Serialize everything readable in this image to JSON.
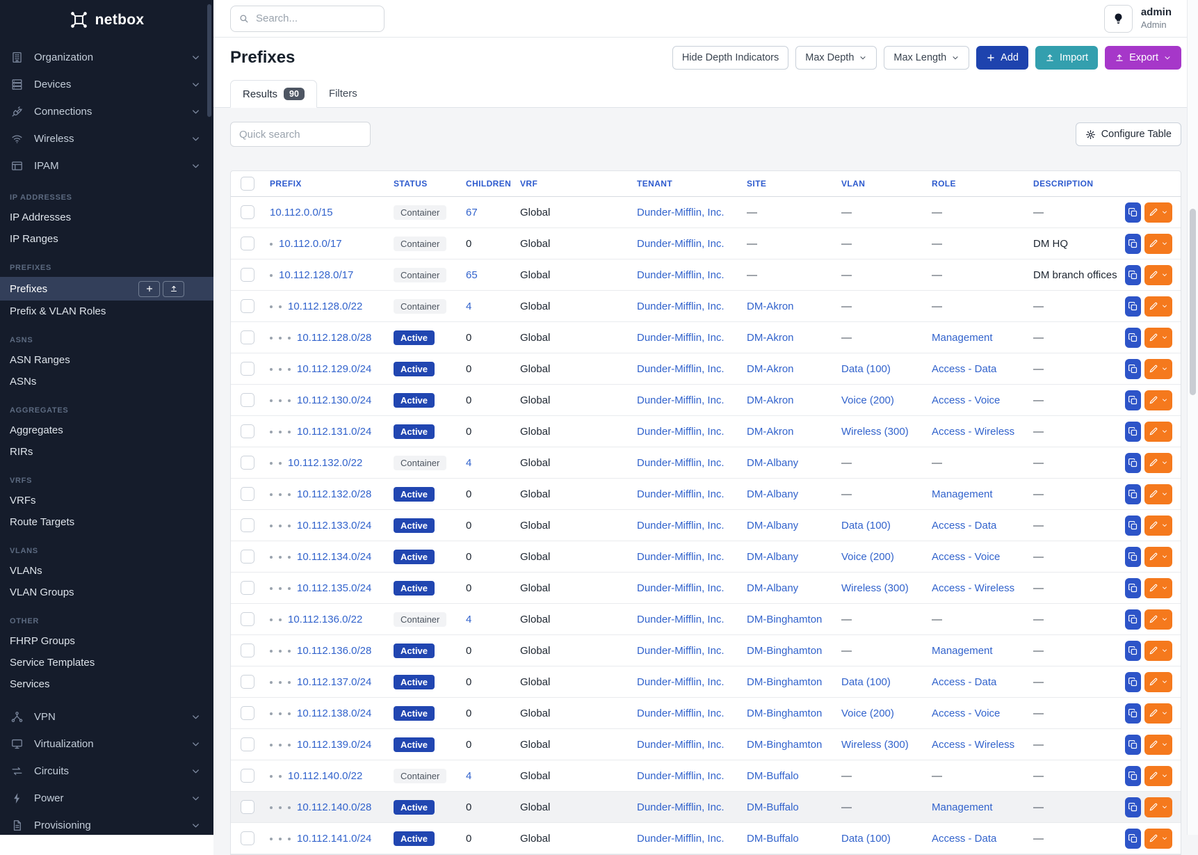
{
  "brand": {
    "name": "netbox",
    "logo_icon": "netbox-logo-icon"
  },
  "topbar": {
    "search_placeholder": "Search...",
    "user": {
      "name": "admin",
      "role": "Admin"
    },
    "theme_toggle_icon": "lightbulb-icon"
  },
  "sidebar": {
    "top_groups": [
      {
        "label": "Organization",
        "icon": "building-icon"
      },
      {
        "label": "Devices",
        "icon": "server-icon"
      },
      {
        "label": "Connections",
        "icon": "plug-icon"
      },
      {
        "label": "Wireless",
        "icon": "wifi-icon"
      },
      {
        "label": "IPAM",
        "icon": "ipam-icon"
      }
    ],
    "sections": [
      {
        "label": "IP ADDRESSES",
        "items": [
          {
            "label": "IP Addresses"
          },
          {
            "label": "IP Ranges"
          }
        ]
      },
      {
        "label": "PREFIXES",
        "items": [
          {
            "label": "Prefixes",
            "active": true,
            "actions": [
              "plus-icon",
              "upload-icon"
            ]
          },
          {
            "label": "Prefix & VLAN Roles"
          }
        ]
      },
      {
        "label": "ASNS",
        "items": [
          {
            "label": "ASN Ranges"
          },
          {
            "label": "ASNs"
          }
        ]
      },
      {
        "label": "AGGREGATES",
        "items": [
          {
            "label": "Aggregates"
          },
          {
            "label": "RIRs"
          }
        ]
      },
      {
        "label": "VRFS",
        "items": [
          {
            "label": "VRFs"
          },
          {
            "label": "Route Targets"
          }
        ]
      },
      {
        "label": "VLANS",
        "items": [
          {
            "label": "VLANs"
          },
          {
            "label": "VLAN Groups"
          }
        ]
      },
      {
        "label": "OTHER",
        "items": [
          {
            "label": "FHRP Groups"
          },
          {
            "label": "Service Templates"
          },
          {
            "label": "Services"
          }
        ]
      }
    ],
    "bottom_groups": [
      {
        "label": "VPN",
        "icon": "share-icon"
      },
      {
        "label": "Virtualization",
        "icon": "monitor-icon"
      },
      {
        "label": "Circuits",
        "icon": "transfer-icon"
      },
      {
        "label": "Power",
        "icon": "bolt-icon"
      },
      {
        "label": "Provisioning",
        "icon": "document-icon"
      }
    ]
  },
  "page": {
    "title": "Prefixes",
    "toolbar": {
      "hide_depth": "Hide Depth Indicators",
      "max_depth": "Max Depth",
      "max_length": "Max Length",
      "add": "Add",
      "import": "Import",
      "export": "Export"
    },
    "tabs": {
      "results": {
        "label": "Results",
        "count": "90"
      },
      "filters": {
        "label": "Filters"
      }
    },
    "quick_search_placeholder": "Quick search",
    "configure_table_label": "Configure Table"
  },
  "table": {
    "empty_placeholder": "—",
    "columns": [
      "PREFIX",
      "STATUS",
      "CHILDREN",
      "VRF",
      "TENANT",
      "SITE",
      "VLAN",
      "ROLE",
      "DESCRIPTION"
    ],
    "rows": [
      {
        "depth": 0,
        "prefix": "10.112.0.0/15",
        "status": "Container",
        "children": "67",
        "children_link": true,
        "vrf": "Global",
        "tenant": "Dunder-Mifflin, Inc.",
        "site": "",
        "vlan": "",
        "role": "",
        "description": ""
      },
      {
        "depth": 1,
        "prefix": "10.112.0.0/17",
        "status": "Container",
        "children": "0",
        "children_link": false,
        "vrf": "Global",
        "tenant": "Dunder-Mifflin, Inc.",
        "site": "",
        "vlan": "",
        "role": "",
        "description": "DM HQ"
      },
      {
        "depth": 1,
        "prefix": "10.112.128.0/17",
        "status": "Container",
        "children": "65",
        "children_link": true,
        "vrf": "Global",
        "tenant": "Dunder-Mifflin, Inc.",
        "site": "",
        "vlan": "",
        "role": "",
        "description": "DM branch offices"
      },
      {
        "depth": 2,
        "prefix": "10.112.128.0/22",
        "status": "Container",
        "children": "4",
        "children_link": true,
        "vrf": "Global",
        "tenant": "Dunder-Mifflin, Inc.",
        "site": "DM-Akron",
        "vlan": "",
        "role": "",
        "description": ""
      },
      {
        "depth": 3,
        "prefix": "10.112.128.0/28",
        "status": "Active",
        "children": "0",
        "children_link": false,
        "vrf": "Global",
        "tenant": "Dunder-Mifflin, Inc.",
        "site": "DM-Akron",
        "vlan": "",
        "role": "Management",
        "description": ""
      },
      {
        "depth": 3,
        "prefix": "10.112.129.0/24",
        "status": "Active",
        "children": "0",
        "children_link": false,
        "vrf": "Global",
        "tenant": "Dunder-Mifflin, Inc.",
        "site": "DM-Akron",
        "vlan": "Data (100)",
        "role": "Access - Data",
        "description": ""
      },
      {
        "depth": 3,
        "prefix": "10.112.130.0/24",
        "status": "Active",
        "children": "0",
        "children_link": false,
        "vrf": "Global",
        "tenant": "Dunder-Mifflin, Inc.",
        "site": "DM-Akron",
        "vlan": "Voice (200)",
        "role": "Access - Voice",
        "description": ""
      },
      {
        "depth": 3,
        "prefix": "10.112.131.0/24",
        "status": "Active",
        "children": "0",
        "children_link": false,
        "vrf": "Global",
        "tenant": "Dunder-Mifflin, Inc.",
        "site": "DM-Akron",
        "vlan": "Wireless (300)",
        "role": "Access - Wireless",
        "description": ""
      },
      {
        "depth": 2,
        "prefix": "10.112.132.0/22",
        "status": "Container",
        "children": "4",
        "children_link": true,
        "vrf": "Global",
        "tenant": "Dunder-Mifflin, Inc.",
        "site": "DM-Albany",
        "vlan": "",
        "role": "",
        "description": ""
      },
      {
        "depth": 3,
        "prefix": "10.112.132.0/28",
        "status": "Active",
        "children": "0",
        "children_link": false,
        "vrf": "Global",
        "tenant": "Dunder-Mifflin, Inc.",
        "site": "DM-Albany",
        "vlan": "",
        "role": "Management",
        "description": ""
      },
      {
        "depth": 3,
        "prefix": "10.112.133.0/24",
        "status": "Active",
        "children": "0",
        "children_link": false,
        "vrf": "Global",
        "tenant": "Dunder-Mifflin, Inc.",
        "site": "DM-Albany",
        "vlan": "Data (100)",
        "role": "Access - Data",
        "description": ""
      },
      {
        "depth": 3,
        "prefix": "10.112.134.0/24",
        "status": "Active",
        "children": "0",
        "children_link": false,
        "vrf": "Global",
        "tenant": "Dunder-Mifflin, Inc.",
        "site": "DM-Albany",
        "vlan": "Voice (200)",
        "role": "Access - Voice",
        "description": ""
      },
      {
        "depth": 3,
        "prefix": "10.112.135.0/24",
        "status": "Active",
        "children": "0",
        "children_link": false,
        "vrf": "Global",
        "tenant": "Dunder-Mifflin, Inc.",
        "site": "DM-Albany",
        "vlan": "Wireless (300)",
        "role": "Access - Wireless",
        "description": ""
      },
      {
        "depth": 2,
        "prefix": "10.112.136.0/22",
        "status": "Container",
        "children": "4",
        "children_link": true,
        "vrf": "Global",
        "tenant": "Dunder-Mifflin, Inc.",
        "site": "DM-Binghamton",
        "vlan": "",
        "role": "",
        "description": ""
      },
      {
        "depth": 3,
        "prefix": "10.112.136.0/28",
        "status": "Active",
        "children": "0",
        "children_link": false,
        "vrf": "Global",
        "tenant": "Dunder-Mifflin, Inc.",
        "site": "DM-Binghamton",
        "vlan": "",
        "role": "Management",
        "description": ""
      },
      {
        "depth": 3,
        "prefix": "10.112.137.0/24",
        "status": "Active",
        "children": "0",
        "children_link": false,
        "vrf": "Global",
        "tenant": "Dunder-Mifflin, Inc.",
        "site": "DM-Binghamton",
        "vlan": "Data (100)",
        "role": "Access - Data",
        "description": ""
      },
      {
        "depth": 3,
        "prefix": "10.112.138.0/24",
        "status": "Active",
        "children": "0",
        "children_link": false,
        "vrf": "Global",
        "tenant": "Dunder-Mifflin, Inc.",
        "site": "DM-Binghamton",
        "vlan": "Voice (200)",
        "role": "Access - Voice",
        "description": ""
      },
      {
        "depth": 3,
        "prefix": "10.112.139.0/24",
        "status": "Active",
        "children": "0",
        "children_link": false,
        "vrf": "Global",
        "tenant": "Dunder-Mifflin, Inc.",
        "site": "DM-Binghamton",
        "vlan": "Wireless (300)",
        "role": "Access - Wireless",
        "description": ""
      },
      {
        "depth": 2,
        "prefix": "10.112.140.0/22",
        "status": "Container",
        "children": "4",
        "children_link": true,
        "vrf": "Global",
        "tenant": "Dunder-Mifflin, Inc.",
        "site": "DM-Buffalo",
        "vlan": "",
        "role": "",
        "description": ""
      },
      {
        "depth": 3,
        "prefix": "10.112.140.0/28",
        "status": "Active",
        "children": "0",
        "children_link": false,
        "vrf": "Global",
        "tenant": "Dunder-Mifflin, Inc.",
        "site": "DM-Buffalo",
        "vlan": "",
        "role": "Management",
        "description": "",
        "highlighted": true
      },
      {
        "depth": 3,
        "prefix": "10.112.141.0/24",
        "status": "Active",
        "children": "0",
        "children_link": false,
        "vrf": "Global",
        "tenant": "Dunder-Mifflin, Inc.",
        "site": "DM-Buffalo",
        "vlan": "Data (100)",
        "role": "Access - Data",
        "description": ""
      }
    ]
  },
  "colors": {
    "sidebar_bg": "#151c2b",
    "sidebar_active_bg": "#333f5a",
    "link_blue": "#3263cc",
    "header_blue": "#2e5bce",
    "active_badge": "#2146b1",
    "container_badge_bg": "#f2f3f5",
    "add_button": "#1e43ae",
    "import_button": "#339fae",
    "export_button": "#a637c9",
    "edit_button": "#f5791d",
    "copy_button": "#2d54c8"
  }
}
